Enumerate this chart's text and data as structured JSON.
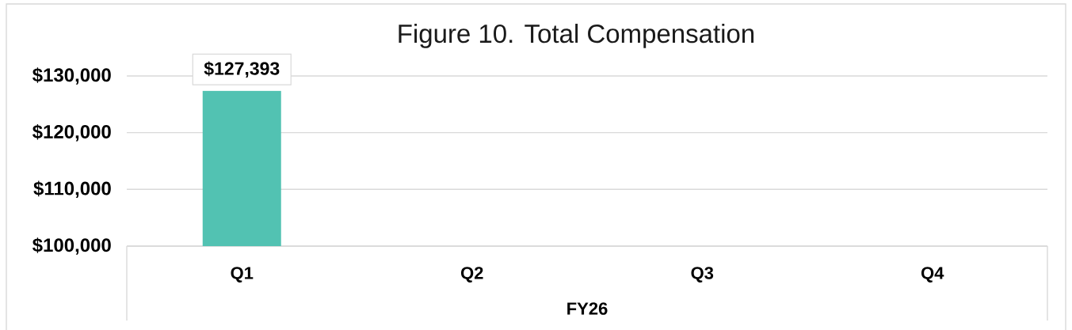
{
  "chart_data": {
    "type": "bar",
    "title": "Figure 10. Total Compensation",
    "xlabel": "FY26",
    "categories": [
      "Q1",
      "Q2",
      "Q3",
      "Q4"
    ],
    "values": [
      127393,
      null,
      null,
      null
    ],
    "color": "#52c2b2",
    "value_labels": [
      "$127,393",
      null,
      null,
      null
    ],
    "ylim": [
      100000,
      130000
    ],
    "yticks": [
      {
        "value": 100000,
        "label": "$100,000"
      },
      {
        "value": 110000,
        "label": "$110,000"
      },
      {
        "value": 120000,
        "label": "$120,000"
      },
      {
        "value": 130000,
        "label": "$130,000"
      }
    ],
    "grid": "y"
  }
}
